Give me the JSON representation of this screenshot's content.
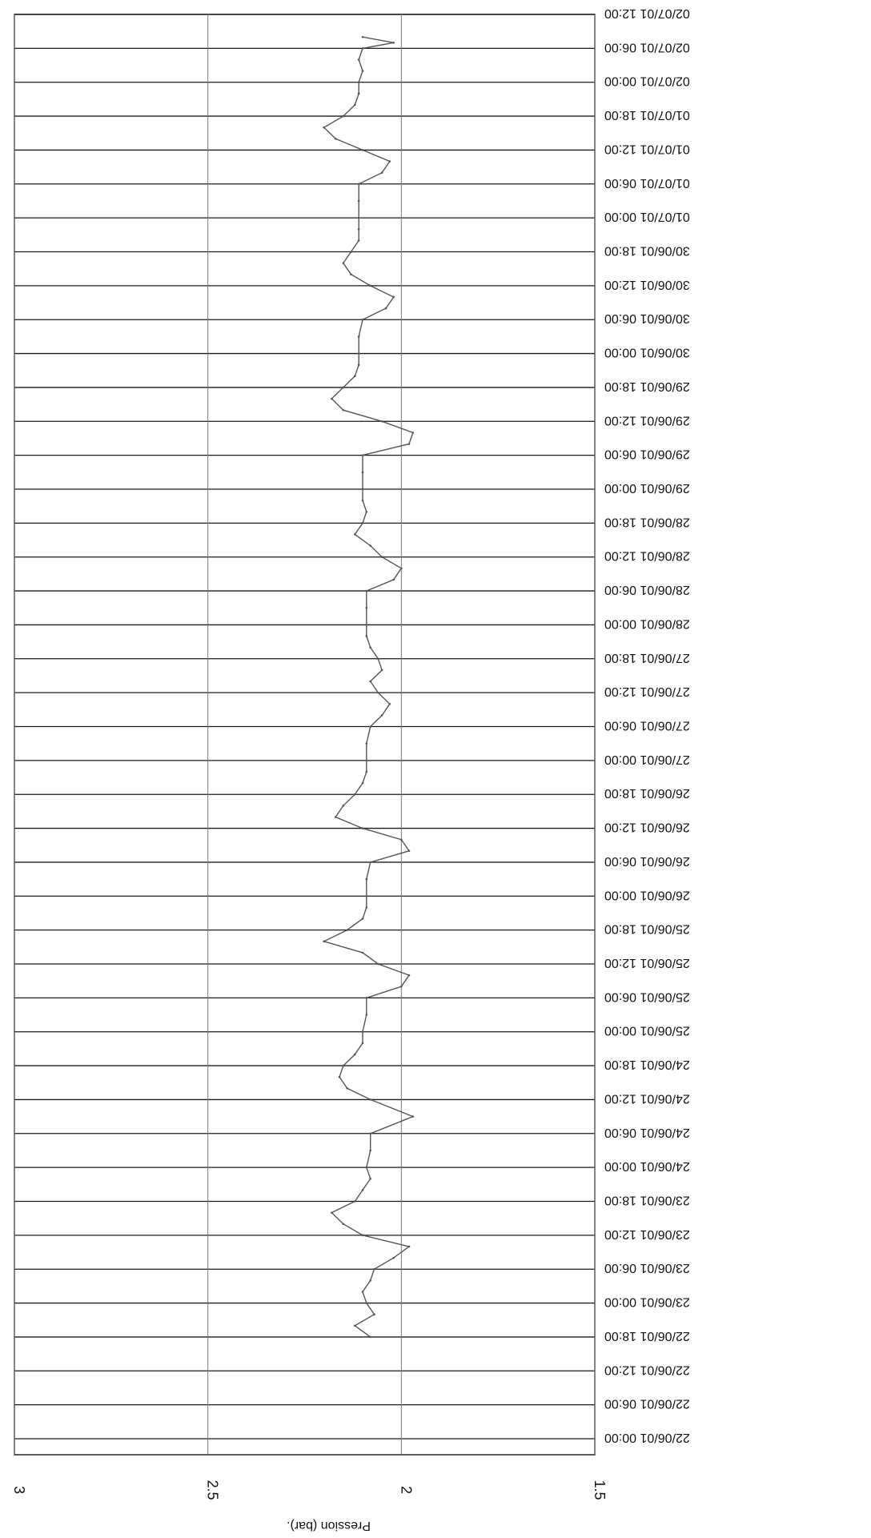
{
  "chart_data": {
    "type": "line",
    "orientation": "rotated-180",
    "ylabel": "Pression  (bar).",
    "ylim": [
      1.5,
      3
    ],
    "y_ticks": [
      "1.5",
      "2",
      "2.5",
      "3"
    ],
    "x_ticks": [
      "22/06/01 00:00",
      "22/06/01 06:00",
      "22/06/01 12:00",
      "22/06/01 18:00",
      "23/06/01 00:00",
      "23/06/01 06:00",
      "23/06/01 12:00",
      "23/06/01 18:00",
      "24/06/01 00:00",
      "24/06/01 06:00",
      "24/06/01 12:00",
      "24/06/01 18:00",
      "25/06/01 00:00",
      "25/06/01 06:00",
      "25/06/01 12:00",
      "25/06/01 18:00",
      "26/06/01 00:00",
      "26/06/01 06:00",
      "26/06/01 12:00",
      "26/06/01 18:00",
      "27/06/01 00:00",
      "27/06/01 06:00",
      "27/06/01 12:00",
      "27/06/01 18:00",
      "28/06/01 00:00",
      "28/06/01 06:00",
      "28/06/01 12:00",
      "28/06/01 18:00",
      "29/06/01 00:00",
      "29/06/01 06:00",
      "29/06/01 12:00",
      "29/06/01 18:00",
      "30/06/01 00:00",
      "30/06/01 06:00",
      "30/06/01 12:00",
      "30/06/01 18:00",
      "01/07/01 00:00",
      "01/07/01 06:00",
      "01/07/01 12:00",
      "01/07/01 18:00",
      "02/07/01 00:00",
      "02/07/01 06:00",
      "02/07/01 12:00"
    ],
    "grid": true,
    "series": [
      {
        "color": "#555555",
        "points": [
          [
            "22/06/01 18:00",
            2.08
          ],
          [
            "22/06/01 20:00",
            2.12
          ],
          [
            "22/06/01 22:00",
            2.07
          ],
          [
            "23/06/01 00:00",
            2.09
          ],
          [
            "23/06/01 02:00",
            2.1
          ],
          [
            "23/06/01 04:00",
            2.08
          ],
          [
            "23/06/01 06:00",
            2.07
          ],
          [
            "23/06/01 08:00",
            2.02
          ],
          [
            "23/06/01 10:00",
            1.98
          ],
          [
            "23/06/01 12:00",
            2.1
          ],
          [
            "23/06/01 14:00",
            2.15
          ],
          [
            "23/06/01 16:00",
            2.18
          ],
          [
            "23/06/01 18:00",
            2.12
          ],
          [
            "23/06/01 20:00",
            2.1
          ],
          [
            "23/06/01 22:00",
            2.08
          ],
          [
            "24/06/01 00:00",
            2.09
          ],
          [
            "24/06/01 03:00",
            2.08
          ],
          [
            "24/06/01 06:00",
            2.08
          ],
          [
            "24/06/01 09:00",
            1.97
          ],
          [
            "24/06/01 12:00",
            2.08
          ],
          [
            "24/06/01 14:00",
            2.14
          ],
          [
            "24/06/01 16:00",
            2.16
          ],
          [
            "24/06/01 18:00",
            2.15
          ],
          [
            "24/06/01 20:00",
            2.12
          ],
          [
            "24/06/01 22:00",
            2.1
          ],
          [
            "25/06/01 00:00",
            2.1
          ],
          [
            "25/06/01 03:00",
            2.09
          ],
          [
            "25/06/01 06:00",
            2.09
          ],
          [
            "25/06/01 08:00",
            2.0
          ],
          [
            "25/06/01 10:00",
            1.98
          ],
          [
            "25/06/01 12:00",
            2.06
          ],
          [
            "25/06/01 14:00",
            2.1
          ],
          [
            "25/06/01 16:00",
            2.2
          ],
          [
            "25/06/01 18:00",
            2.14
          ],
          [
            "25/06/01 20:00",
            2.1
          ],
          [
            "25/06/01 22:00",
            2.09
          ],
          [
            "26/06/01 00:00",
            2.09
          ],
          [
            "26/06/01 03:00",
            2.09
          ],
          [
            "26/06/01 06:00",
            2.08
          ],
          [
            "26/06/01 08:00",
            1.98
          ],
          [
            "26/06/01 10:00",
            2.0
          ],
          [
            "26/06/01 12:00",
            2.1
          ],
          [
            "26/06/01 14:00",
            2.17
          ],
          [
            "26/06/01 16:00",
            2.15
          ],
          [
            "26/06/01 18:00",
            2.12
          ],
          [
            "26/06/01 20:00",
            2.1
          ],
          [
            "26/06/01 22:00",
            2.09
          ],
          [
            "27/06/01 00:00",
            2.09
          ],
          [
            "27/06/01 03:00",
            2.09
          ],
          [
            "27/06/01 06:00",
            2.08
          ],
          [
            "27/06/01 08:00",
            2.05
          ],
          [
            "27/06/01 10:00",
            2.03
          ],
          [
            "27/06/01 12:00",
            2.06
          ],
          [
            "27/06/01 14:00",
            2.08
          ],
          [
            "27/06/01 16:00",
            2.05
          ],
          [
            "27/06/01 18:00",
            2.06
          ],
          [
            "27/06/01 20:00",
            2.08
          ],
          [
            "27/06/01 22:00",
            2.09
          ],
          [
            "28/06/01 00:00",
            2.09
          ],
          [
            "28/06/01 03:00",
            2.09
          ],
          [
            "28/06/01 06:00",
            2.09
          ],
          [
            "28/06/01 08:00",
            2.02
          ],
          [
            "28/06/01 10:00",
            2.0
          ],
          [
            "28/06/01 12:00",
            2.05
          ],
          [
            "28/06/01 14:00",
            2.08
          ],
          [
            "28/06/01 16:00",
            2.12
          ],
          [
            "28/06/01 18:00",
            2.1
          ],
          [
            "28/06/01 20:00",
            2.09
          ],
          [
            "28/06/01 22:00",
            2.1
          ],
          [
            "29/06/01 00:00",
            2.1
          ],
          [
            "29/06/01 03:00",
            2.1
          ],
          [
            "29/06/01 06:00",
            2.1
          ],
          [
            "29/06/01 08:00",
            1.98
          ],
          [
            "29/06/01 10:00",
            1.97
          ],
          [
            "29/06/01 12:00",
            2.05
          ],
          [
            "29/06/01 14:00",
            2.15
          ],
          [
            "29/06/01 16:00",
            2.18
          ],
          [
            "29/06/01 18:00",
            2.15
          ],
          [
            "29/06/01 20:00",
            2.12
          ],
          [
            "29/06/01 22:00",
            2.11
          ],
          [
            "30/06/01 00:00",
            2.11
          ],
          [
            "30/06/01 03:00",
            2.11
          ],
          [
            "30/06/01 06:00",
            2.1
          ],
          [
            "30/06/01 08:00",
            2.04
          ],
          [
            "30/06/01 10:00",
            2.02
          ],
          [
            "30/06/01 12:00",
            2.08
          ],
          [
            "30/06/01 14:00",
            2.13
          ],
          [
            "30/06/01 16:00",
            2.15
          ],
          [
            "30/06/01 18:00",
            2.13
          ],
          [
            "30/06/01 20:00",
            2.11
          ],
          [
            "30/06/01 22:00",
            2.11
          ],
          [
            "01/07/01 00:00",
            2.11
          ],
          [
            "01/07/01 03:00",
            2.11
          ],
          [
            "01/07/01 06:00",
            2.11
          ],
          [
            "01/07/01 08:00",
            2.05
          ],
          [
            "01/07/01 10:00",
            2.03
          ],
          [
            "01/07/01 12:00",
            2.1
          ],
          [
            "01/07/01 14:00",
            2.17
          ],
          [
            "01/07/01 16:00",
            2.2
          ],
          [
            "01/07/01 18:00",
            2.15
          ],
          [
            "01/07/01 20:00",
            2.12
          ],
          [
            "01/07/01 22:00",
            2.11
          ],
          [
            "02/07/01 00:00",
            2.11
          ],
          [
            "02/07/01 02:00",
            2.1
          ],
          [
            "02/07/01 04:00",
            2.11
          ],
          [
            "02/07/01 06:00",
            2.1
          ],
          [
            "02/07/01 07:00",
            2.02
          ],
          [
            "02/07/01 08:00",
            2.1
          ]
        ]
      }
    ]
  }
}
